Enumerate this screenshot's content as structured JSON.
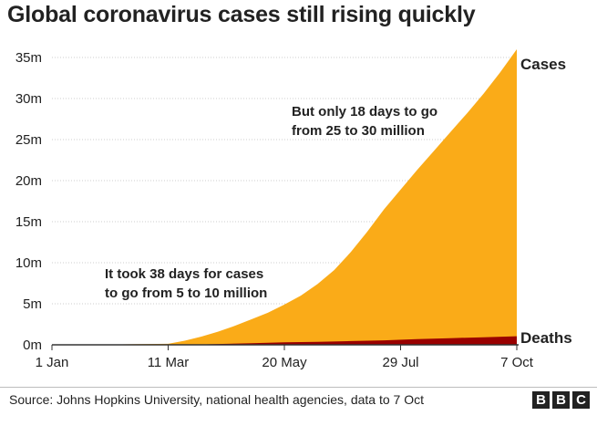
{
  "title": "Global coronavirus cases still rising quickly",
  "source": "Source: Johns Hopkins University, national health agencies, data to 7 Oct",
  "logo": [
    "B",
    "B",
    "C"
  ],
  "colors": {
    "cases": "#FAAB18",
    "deaths": "#990000",
    "grid": "#cccccc",
    "axis": "#333333"
  },
  "chart_data": {
    "type": "area",
    "title": "Global coronavirus cases still rising quickly",
    "xlabel": "",
    "ylabel": "",
    "x_unit": "days since 1 Jan 2020",
    "xlim": [
      0,
      280
    ],
    "ylim": [
      0,
      35
    ],
    "y_unit": "millions",
    "y_ticks": [
      0,
      5,
      10,
      15,
      20,
      25,
      30,
      35
    ],
    "y_tick_labels": [
      "0m",
      "5m",
      "10m",
      "15m",
      "20m",
      "25m",
      "30m",
      "35m"
    ],
    "x_ticks": [
      0,
      70,
      140,
      210,
      280
    ],
    "x_tick_labels": [
      "1 Jan",
      "11 Mar",
      "20 May",
      "29 Jul",
      "7 Oct"
    ],
    "series": [
      {
        "name": "Cases",
        "x": [
          0,
          30,
          50,
          70,
          80,
          90,
          100,
          110,
          120,
          130,
          140,
          150,
          160,
          170,
          180,
          190,
          200,
          210,
          220,
          230,
          240,
          250,
          260,
          270,
          280
        ],
        "values": [
          0,
          0.01,
          0.08,
          0.12,
          0.5,
          1.0,
          1.6,
          2.3,
          3.1,
          3.9,
          4.9,
          6.0,
          7.4,
          9.1,
          11.3,
          13.8,
          16.5,
          18.9,
          21.3,
          23.6,
          25.9,
          28.2,
          30.6,
          33.2,
          36.0
        ]
      },
      {
        "name": "Deaths",
        "x": [
          0,
          70,
          90,
          100,
          120,
          140,
          160,
          180,
          200,
          220,
          240,
          260,
          280
        ],
        "values": [
          0,
          0.004,
          0.05,
          0.1,
          0.2,
          0.3,
          0.37,
          0.45,
          0.55,
          0.69,
          0.81,
          0.92,
          1.05
        ]
      }
    ],
    "annotations": [
      {
        "lines": [
          "It took 38 days for cases",
          "to go from 5 to 10 million"
        ]
      },
      {
        "lines": [
          "But only 18 days to go",
          "from 25 to 30 million"
        ]
      }
    ]
  }
}
